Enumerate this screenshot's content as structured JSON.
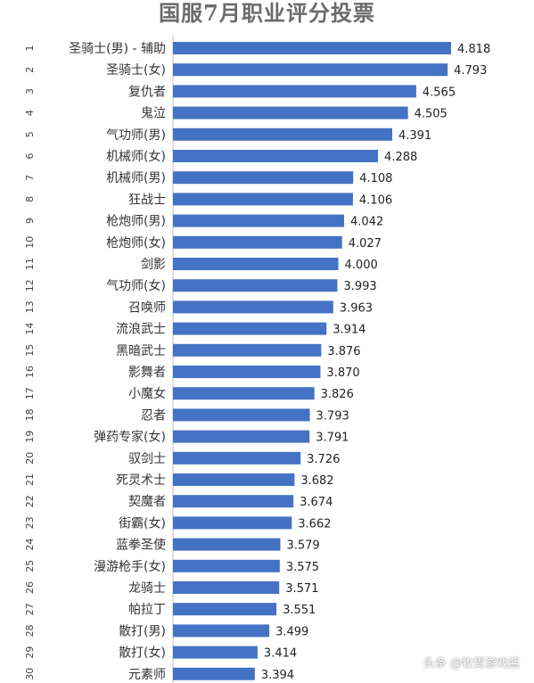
{
  "chart_data": {
    "type": "bar",
    "orientation": "horizontal",
    "title": "国服7月职业评分投票",
    "ranks": [
      "1",
      "2",
      "3",
      "4",
      "5",
      "6",
      "7",
      "8",
      "9",
      "10",
      "11",
      "12",
      "13",
      "14",
      "15",
      "16",
      "17",
      "18",
      "19",
      "20",
      "21",
      "22",
      "23",
      "24",
      "25",
      "26",
      "27",
      "28",
      "29",
      "30"
    ],
    "categories": [
      "圣骑士(男) - 辅助",
      "圣骑士(女)",
      "复仇者",
      "鬼泣",
      "气功师(男)",
      "机械师(女)",
      "机械师(男)",
      "狂战士",
      "枪炮师(男)",
      "枪炮师(女)",
      "剑影",
      "气功师(女)",
      "召唤师",
      "流浪武士",
      "黑暗武士",
      "影舞者",
      "小魔女",
      "忍者",
      "弹药专家(女)",
      "驭剑士",
      "死灵术士",
      "契魔者",
      "街霸(女)",
      "蓝拳圣使",
      "漫游枪手(女)",
      "龙骑士",
      "帕拉丁",
      "散打(男)",
      "散打(女)",
      "元素师"
    ],
    "values": [
      4.818,
      4.793,
      4.565,
      4.505,
      4.391,
      4.288,
      4.108,
      4.106,
      4.042,
      4.027,
      4.0,
      3.993,
      3.963,
      3.914,
      3.876,
      3.87,
      3.826,
      3.793,
      3.791,
      3.726,
      3.682,
      3.674,
      3.662,
      3.579,
      3.575,
      3.571,
      3.551,
      3.499,
      3.414,
      3.394
    ],
    "value_labels": [
      "4.818",
      "4.793",
      "4.565",
      "4.505",
      "4.391",
      "4.288",
      "4.108",
      "4.106",
      "4.042",
      "4.027",
      "4.000",
      "3.993",
      "3.963",
      "3.914",
      "3.876",
      "3.870",
      "3.826",
      "3.793",
      "3.791",
      "3.726",
      "3.682",
      "3.674",
      "3.662",
      "3.579",
      "3.575",
      "3.571",
      "3.551",
      "3.499",
      "3.414",
      "3.394"
    ],
    "bar_color": "#4472c4",
    "xlim": [
      2.8,
      4.95
    ],
    "grid": false,
    "legend": "none"
  },
  "watermark": "头条 @牧胥游戏酱"
}
